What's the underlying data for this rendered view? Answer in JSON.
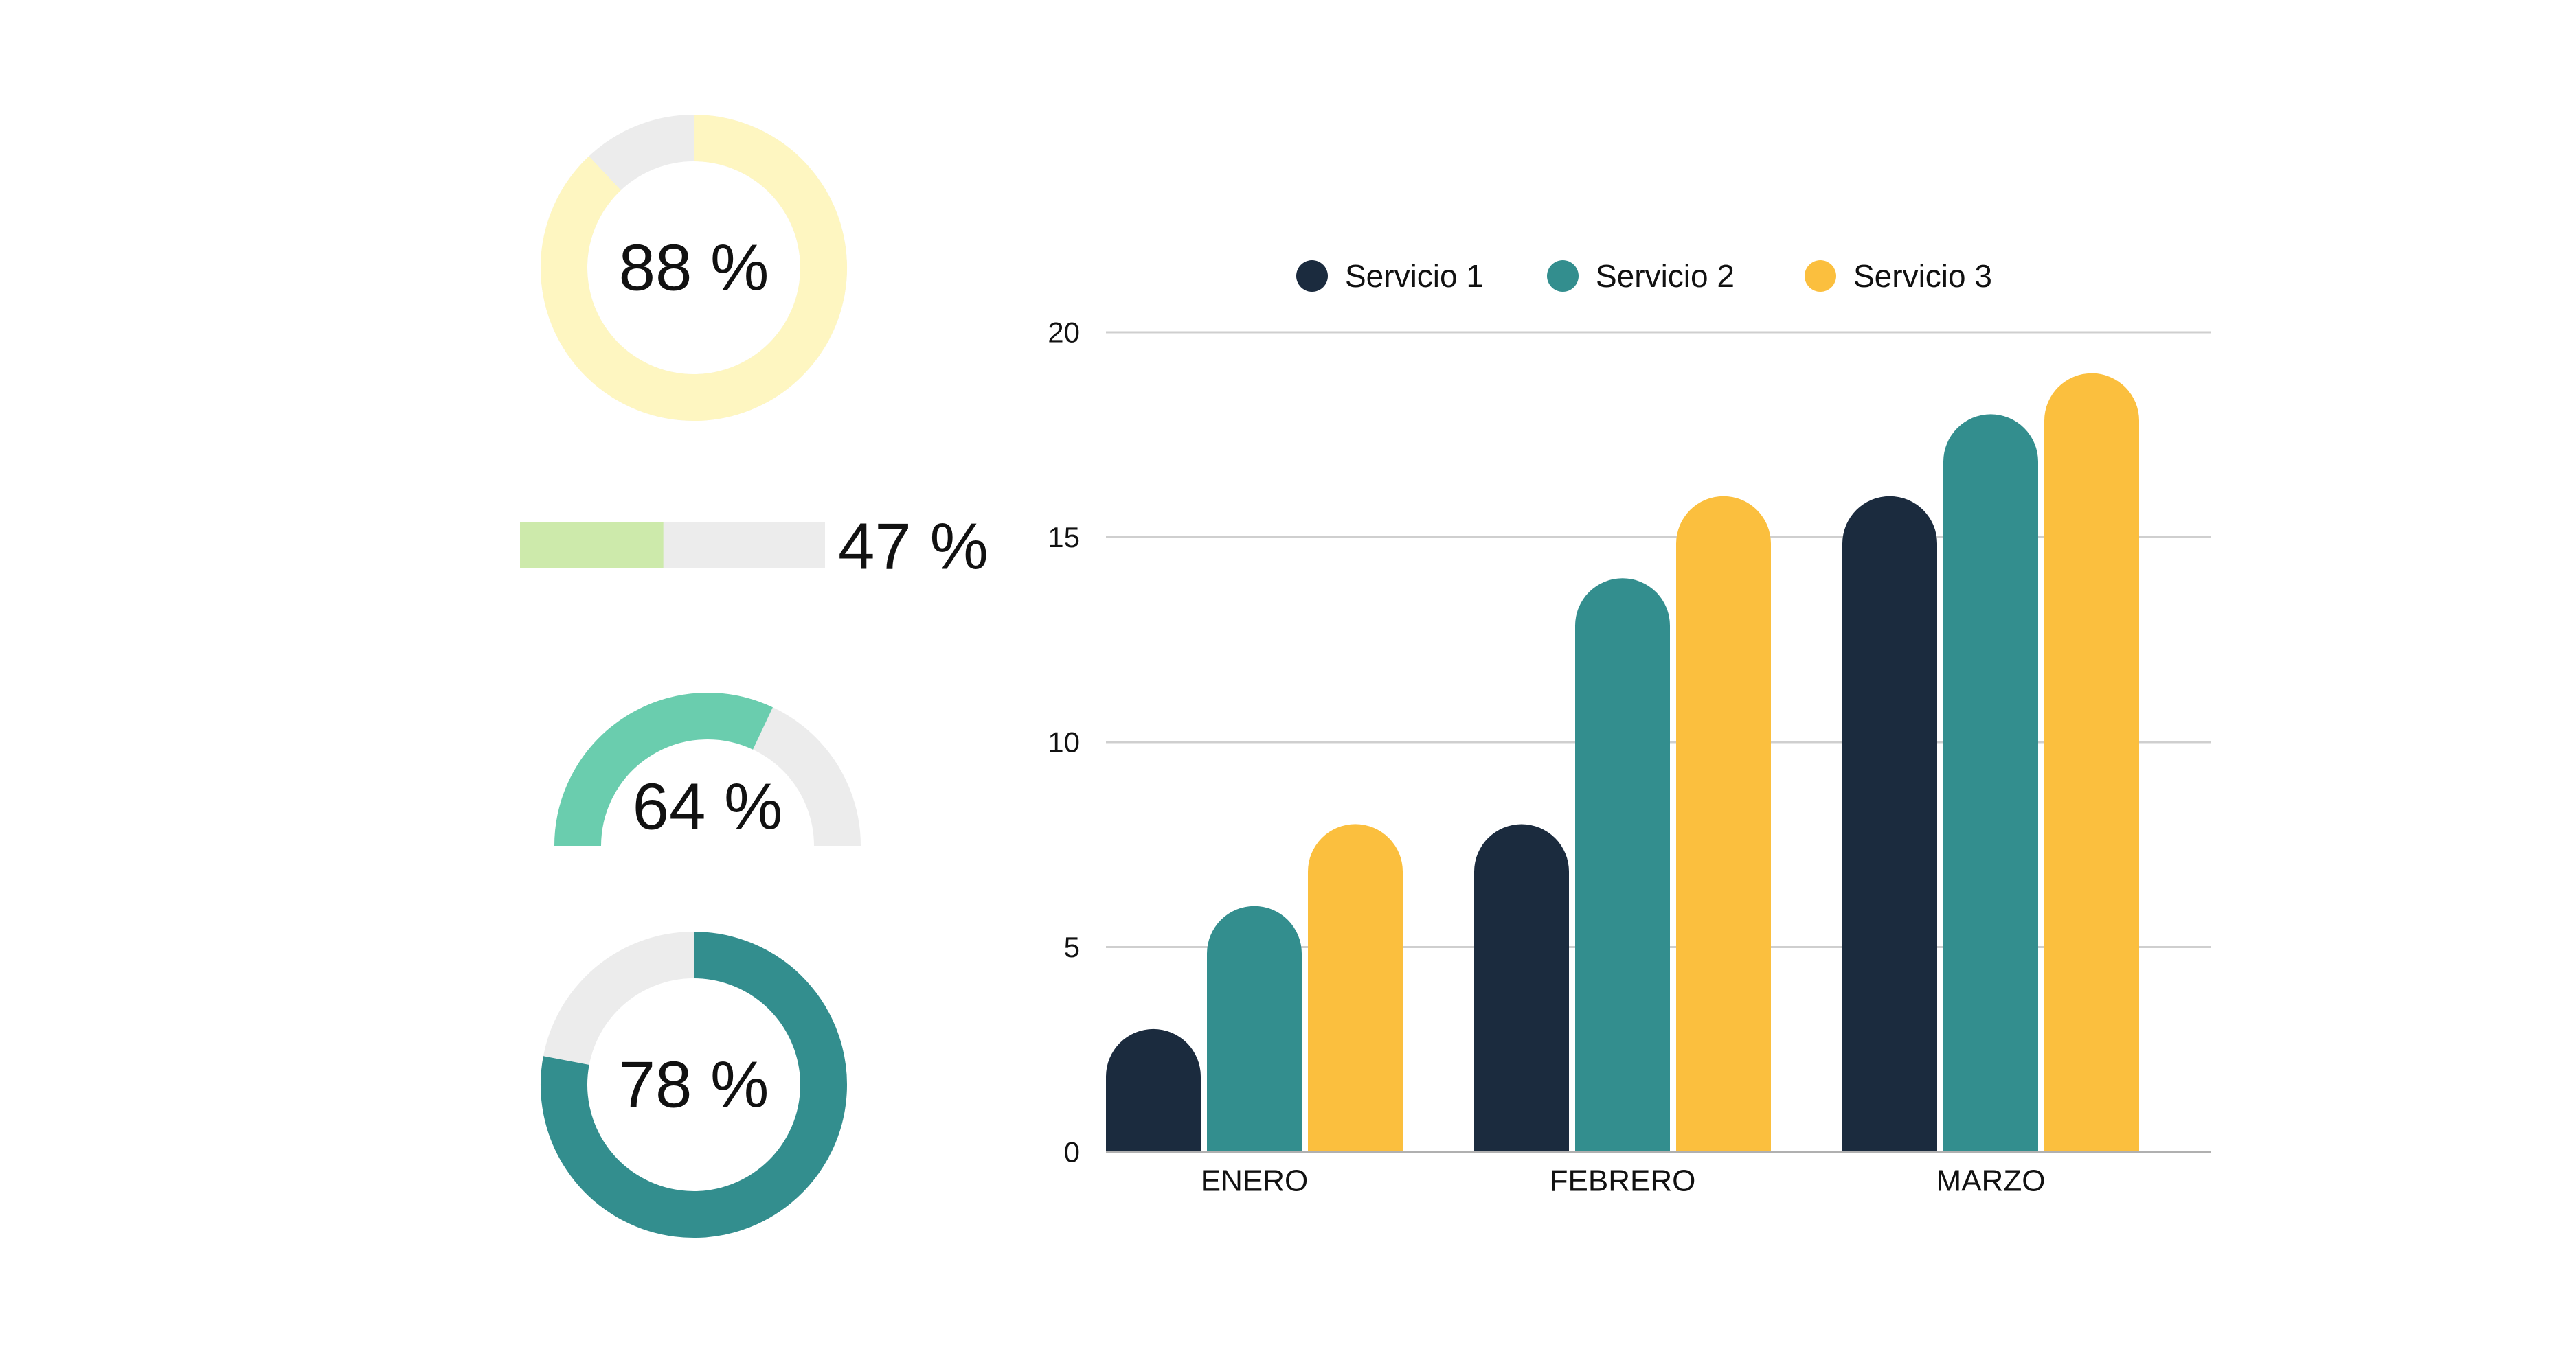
{
  "colors": {
    "track": "#ececec",
    "gauge1": "#fef6c1",
    "bar": "#cdeaab",
    "gauge3": "#6acdae",
    "gauge4": "#338e8e",
    "series": [
      "#1b2b3e",
      "#338e8e",
      "#fbbf3e"
    ],
    "grid": "#cfcfcf",
    "axis": "#b0b0b0",
    "text": "#111111"
  },
  "widgets": {
    "ring_top": {
      "label": "88 %",
      "value": 88
    },
    "progress_bar": {
      "label": "47 %",
      "value": 47
    },
    "half_gauge": {
      "label": "64 %",
      "value": 64
    },
    "ring_bottom": {
      "label": "78 %",
      "value": 78
    }
  },
  "chart_data": {
    "type": "bar",
    "title": "",
    "xlabel": "",
    "ylabel": "",
    "categories": [
      "ENERO",
      "FEBRERO",
      "MARZO"
    ],
    "series": [
      {
        "name": "Servicio 1",
        "values": [
          3,
          8,
          16
        ]
      },
      {
        "name": "Servicio 2",
        "values": [
          6,
          14,
          18
        ]
      },
      {
        "name": "Servicio 3",
        "values": [
          8,
          16,
          19
        ]
      }
    ],
    "ylim": [
      0,
      20
    ],
    "yticks": [
      "0",
      "5",
      "10",
      "15",
      "20"
    ],
    "grid": true,
    "legend": "top"
  }
}
